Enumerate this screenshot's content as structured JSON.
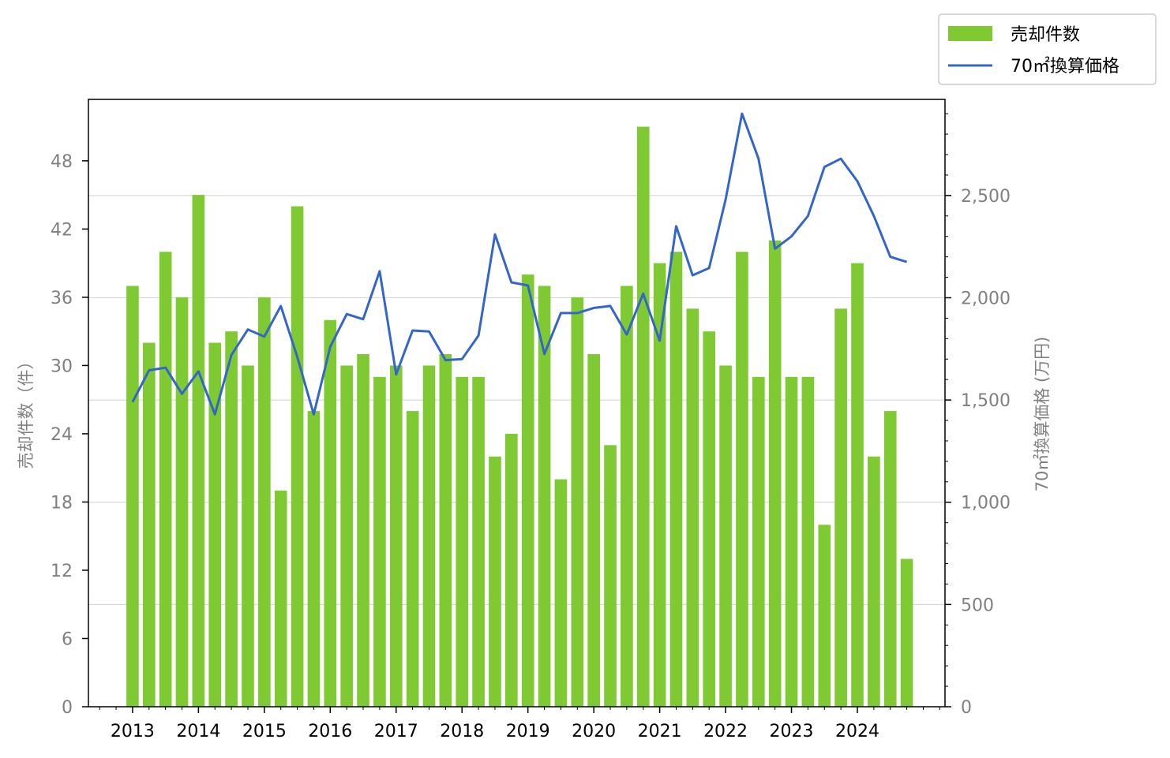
{
  "chart_data": {
    "type": "bar",
    "legend": {
      "placement": "top-right",
      "entries": [
        "売却件数",
        "70㎡換算価格"
      ]
    },
    "colors": {
      "bars": "#7fca33",
      "line": "#3465c8",
      "grid": "#d9d9d9",
      "axis_label": "#808080"
    },
    "left_axis": {
      "label": "売却件数（件）",
      "ylim": [
        0,
        53.4
      ],
      "ticks": [
        0,
        6,
        12,
        18,
        24,
        30,
        36,
        42,
        48
      ]
    },
    "right_axis": {
      "label": "70㎡換算価格 (万円)",
      "ylim": [
        0,
        2970
      ],
      "ticks": [
        "0",
        "500",
        "1,000",
        "1,500",
        "2,000",
        "2,500"
      ]
    },
    "x_axis": {
      "xlim": [
        2012.33,
        2025.33
      ],
      "year_labels": [
        "2013",
        "2014",
        "2015",
        "2016",
        "2017",
        "2018",
        "2019",
        "2020",
        "2021",
        "2022",
        "2023",
        "2024"
      ]
    },
    "grid": "horizontal at right-axis ticks",
    "series": [
      {
        "name": "売却件数",
        "type": "bar",
        "values": [
          37,
          32,
          40,
          36,
          45,
          32,
          33,
          30,
          36,
          19,
          44,
          26,
          34,
          30,
          31,
          29,
          30,
          26,
          30,
          31,
          29,
          29,
          22,
          24,
          38,
          37,
          20,
          36,
          31,
          23,
          37,
          51,
          39,
          40,
          35,
          33,
          30,
          40,
          29,
          41,
          29,
          29,
          16,
          35,
          39,
          22,
          26,
          13
        ]
      },
      {
        "name": "70㎡換算価格",
        "type": "line",
        "values": [
          1490,
          1645,
          1658,
          1530,
          1640,
          1430,
          1720,
          1845,
          1810,
          1960,
          1710,
          1430,
          1760,
          1920,
          1895,
          2130,
          1625,
          1840,
          1835,
          1695,
          1700,
          1815,
          2310,
          2075,
          2060,
          1725,
          1925,
          1925,
          1950,
          1960,
          1820,
          2020,
          1790,
          2350,
          2110,
          2145,
          2480,
          2900,
          2680,
          2240,
          2300,
          2400,
          2640,
          2680,
          2570,
          2400,
          2200,
          2175
        ]
      }
    ],
    "x": [
      2013.0,
      2013.25,
      2013.5,
      2013.75,
      2014.0,
      2014.25,
      2014.5,
      2014.75,
      2015.0,
      2015.25,
      2015.5,
      2015.75,
      2016.0,
      2016.25,
      2016.5,
      2016.75,
      2017.0,
      2017.25,
      2017.5,
      2017.75,
      2018.0,
      2018.25,
      2018.5,
      2018.75,
      2019.0,
      2019.25,
      2019.5,
      2019.75,
      2020.0,
      2020.25,
      2020.5,
      2020.75,
      2021.0,
      2021.25,
      2021.5,
      2021.75,
      2022.0,
      2022.25,
      2022.5,
      2022.75,
      2023.0,
      2023.25,
      2023.5,
      2023.75,
      2024.0,
      2024.25,
      2024.5,
      2024.75
    ]
  }
}
